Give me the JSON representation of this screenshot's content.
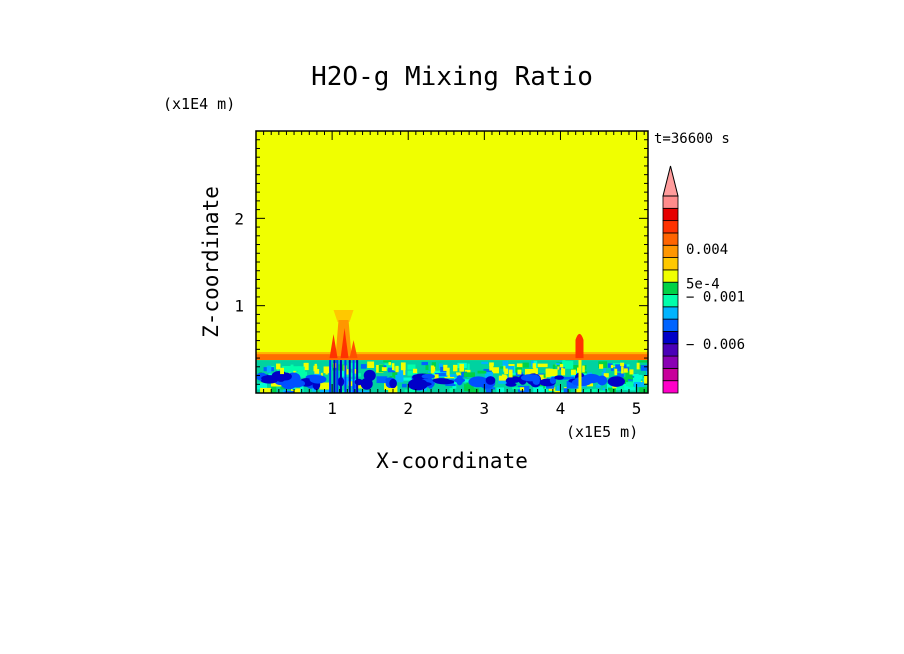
{
  "chart_data": {
    "type": "heatmap",
    "title": "H2O-g Mixing Ratio",
    "xlabel": "X-coordinate",
    "ylabel": "Z-coordinate",
    "x_scale_label": "(x1E5 m)",
    "y_scale_label": "(x1E4 m)",
    "time_label": "t=36600 s",
    "xlim": [
      0,
      5.15
    ],
    "ylim": [
      0,
      3.0
    ],
    "x_ticks": [
      "1",
      "2",
      "3",
      "4",
      "5"
    ],
    "x_tick_values": [
      1,
      2,
      3,
      4,
      5
    ],
    "y_ticks": [
      "1",
      "2"
    ],
    "y_tick_values": [
      1,
      2
    ],
    "background_color": "#f0ff00",
    "boundary_layer_top": 0.4,
    "features": [
      {
        "name": "plume",
        "x": 1.15,
        "z_top": 0.95
      },
      {
        "name": "plume",
        "x": 4.25,
        "z_top": 0.7
      }
    ],
    "colorbar": {
      "colors": [
        "#ff00c8",
        "#c8009b",
        "#8a00b4",
        "#4a00b8",
        "#0000c8",
        "#0064ff",
        "#00b4ff",
        "#00ffaa",
        "#00d246",
        "#f0ff00",
        "#ffc800",
        "#ff9600",
        "#ff6400",
        "#ff3200",
        "#e60000",
        "#ff8c8c"
      ],
      "extend_top_color": "#ff9c9c",
      "labels": [
        "0.004",
        "5e-4",
        "− 0.001",
        "− 0.006"
      ],
      "label_positions": [
        0.27,
        0.445,
        0.51,
        0.75
      ]
    }
  }
}
